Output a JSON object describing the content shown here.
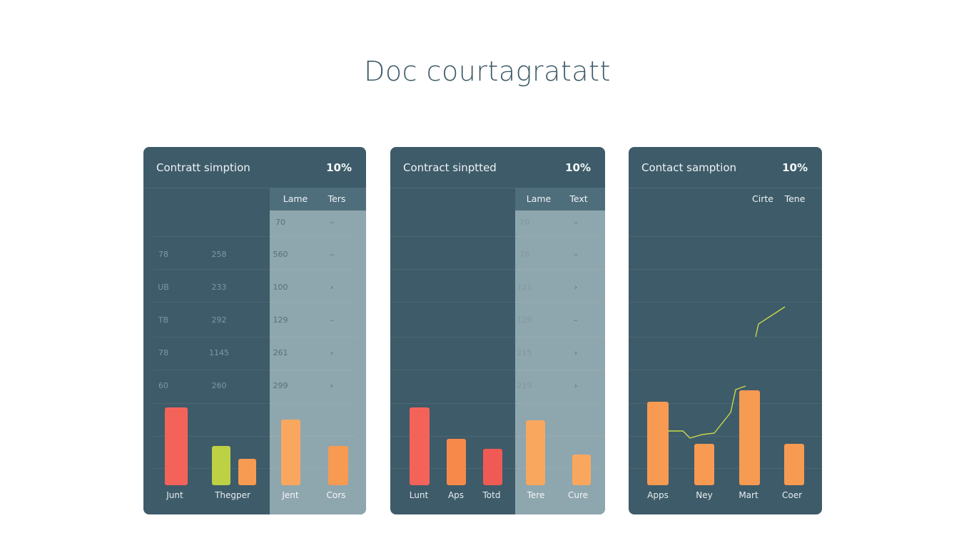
{
  "title": "Doc courtagratatt",
  "chart_data": [
    {
      "type": "bar",
      "header": {
        "title": "Contratt simption",
        "percent": "10%"
      },
      "columns": [
        "Lame",
        "Ters"
      ],
      "rows": [
        {
          "c1": "",
          "c2": "",
          "c3": "70",
          "c4": "–"
        },
        {
          "c1": "78",
          "c2": "258",
          "c3": "560",
          "c4": "–"
        },
        {
          "c1": "UB",
          "c2": "233",
          "c3": "100",
          "c4": "›"
        },
        {
          "c1": "TB",
          "c2": "292",
          "c3": "129",
          "c4": "–"
        },
        {
          "c1": "78",
          "c2": "1145",
          "c3": "261",
          "c4": "›"
        },
        {
          "c1": "60",
          "c2": "260",
          "c3": "299",
          "c4": "›"
        }
      ],
      "categories": [
        "Junt",
        "Thegper",
        "",
        "Jent",
        "Cors"
      ],
      "values": [
        109,
        55,
        37,
        92,
        55
      ],
      "bar_colors": [
        "#f4635a",
        "#bcd144",
        "#f79a52",
        "#f9a75e",
        "#f79a52"
      ]
    },
    {
      "type": "bar",
      "header": {
        "title": "Contract sinptted",
        "percent": "10%"
      },
      "columns": [
        "Lame",
        "Text"
      ],
      "rows": [
        {
          "c3": "70",
          "c4": "–"
        },
        {
          "c3": "78",
          "c4": "–"
        },
        {
          "c3": "121",
          "c4": "›"
        },
        {
          "c3": "129",
          "c4": "–"
        },
        {
          "c3": "215",
          "c4": "›"
        },
        {
          "c3": "219",
          "c4": "›"
        }
      ],
      "categories": [
        "Lunt",
        "Aps",
        "Totd",
        "Tere",
        "Cure"
      ],
      "values": [
        109,
        65,
        51,
        91,
        43
      ],
      "bar_colors": [
        "#f4635a",
        "#f78a4a",
        "#f05a55",
        "#f9a75e",
        "#f9a75e"
      ]
    },
    {
      "type": "bar",
      "header": {
        "title": "Contact samption",
        "percent": "10%"
      },
      "columns": [
        "Cirte",
        "Tene"
      ],
      "categories": [
        "Apps",
        "Ney",
        "Mart",
        "Coer"
      ],
      "values": [
        117,
        58,
        133,
        58
      ],
      "bar_colors": [
        "#f79a52",
        "#f79a52",
        "#f79a52",
        "#f79a52"
      ],
      "line_color": "#c8d94a"
    }
  ]
}
